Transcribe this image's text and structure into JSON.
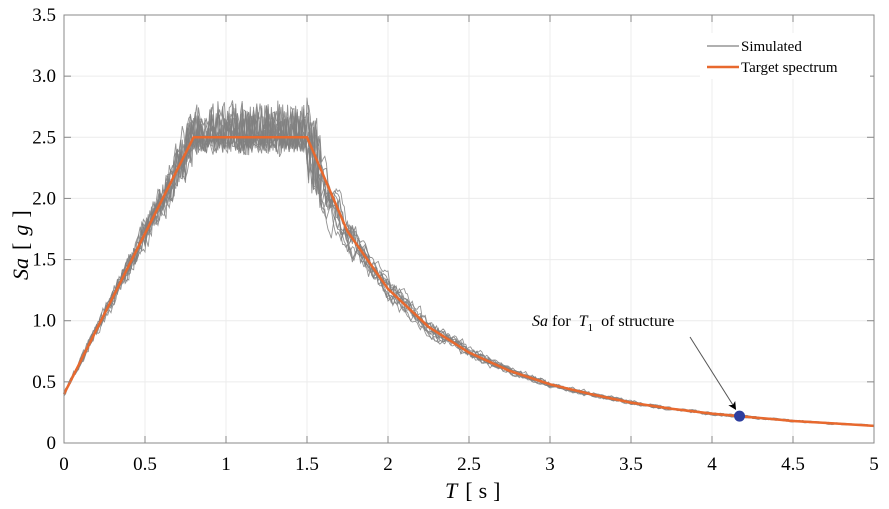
{
  "chart_data": {
    "type": "line",
    "xlabel": {
      "var": "T",
      "unit": "s"
    },
    "ylabel": {
      "var": "Sa",
      "unit": "g"
    },
    "xlim": [
      0,
      5
    ],
    "ylim": [
      0,
      3.5
    ],
    "xticks": [
      "0",
      "0.5",
      "1",
      "1.5",
      "2",
      "2.5",
      "3",
      "3.5",
      "4",
      "4.5",
      "5"
    ],
    "yticks": [
      "0",
      "0.5",
      "1.0",
      "1.5",
      "2.0",
      "2.5",
      "3.0",
      "3.5"
    ],
    "grid": true,
    "legend": {
      "position": "top-right",
      "entries": [
        "Simulated",
        "Target spectrum"
      ]
    },
    "series": [
      {
        "name": "Target spectrum",
        "color": "#E8692E",
        "x": [
          0,
          0.8,
          1.5,
          1.75,
          2.0,
          2.25,
          2.5,
          2.75,
          3.0,
          3.25,
          3.5,
          3.75,
          4.0,
          4.25,
          4.5,
          4.75,
          5.0
        ],
        "y": [
          0.4,
          2.5,
          2.5,
          1.73,
          1.26,
          0.95,
          0.74,
          0.59,
          0.48,
          0.4,
          0.33,
          0.28,
          0.24,
          0.21,
          0.18,
          0.16,
          0.14
        ]
      },
      {
        "name": "Simulated",
        "color": "#808080",
        "count": 12
      }
    ],
    "marker": {
      "x": 4.17,
      "y": 0.22,
      "color": "#2E3E9E"
    },
    "annotation": {
      "italic": "Sa",
      "text1": " for ",
      "var": "T",
      "sub": "1",
      "text2": " of structure"
    }
  }
}
